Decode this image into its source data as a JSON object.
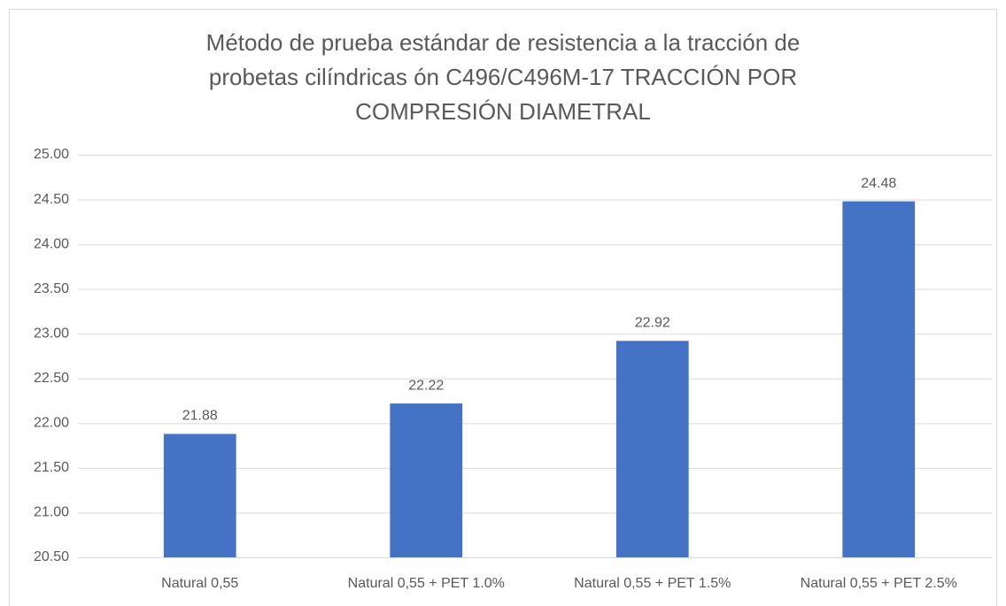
{
  "chart_data": {
    "type": "bar",
    "title": [
      "Método de prueba estándar de resistencia a la tracción de",
      "probetas cilíndricas ón C496/C496M-17 TRACCIÓN POR",
      "COMPRESIÓN DIAMETRAL"
    ],
    "categories": [
      "Natural 0,55",
      "Natural 0,55 + PET 1.0%",
      "Natural 0,55 + PET 1.5%",
      "Natural 0,55 + PET 2.5%"
    ],
    "values": [
      21.88,
      22.22,
      22.92,
      24.48
    ],
    "color": "#4472c4",
    "ylim": [
      20.5,
      25
    ],
    "yticks": [
      {
        "value": 20.5,
        "label": "20.50"
      },
      {
        "value": 21,
        "label": "21.00"
      },
      {
        "value": 21.5,
        "label": "21.50"
      },
      {
        "value": 22,
        "label": "22.00"
      },
      {
        "value": 22.5,
        "label": "22.50"
      },
      {
        "value": 23,
        "label": "23.00"
      },
      {
        "value": 23.5,
        "label": "23.50"
      },
      {
        "value": 24,
        "label": "24.00"
      },
      {
        "value": 24.5,
        "label": "24.50"
      },
      {
        "value": 25,
        "label": "25.00"
      }
    ],
    "grid": true
  }
}
